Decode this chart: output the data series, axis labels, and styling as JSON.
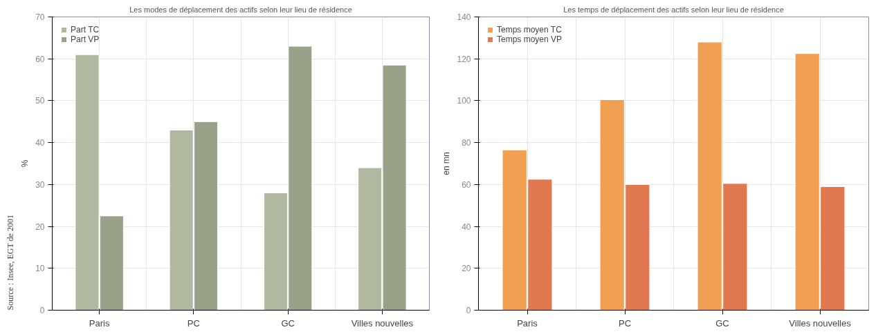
{
  "chart_data": [
    {
      "type": "bar",
      "title": "Les modes de déplacement des actifs selon leur lieu de résidence",
      "ylabel": "%",
      "categories": [
        "Paris",
        "PC",
        "GC",
        "Villes nouvelles"
      ],
      "series": [
        {
          "name": "Part TC",
          "color": "#b0b8a0",
          "values": [
            61,
            43,
            28,
            34
          ]
        },
        {
          "name": "Part VP",
          "color": "#98a288",
          "values": [
            22.5,
            45,
            63,
            58.5
          ]
        }
      ],
      "ylim": [
        0,
        70
      ],
      "yticks": [
        0,
        10,
        20,
        30,
        40,
        50,
        60,
        70
      ],
      "grid": true,
      "legend": "top left",
      "annotations": [
        "Source : Insee, EGT de 2001"
      ]
    },
    {
      "type": "bar",
      "title": "Les temps de déplacement des actifs selon leur lieu de résidence",
      "ylabel": "en mn",
      "categories": [
        "Paris",
        "PC",
        "GC",
        "Villes nouvelles"
      ],
      "series": [
        {
          "name": "Temps moyen TC",
          "color": "#f0a050",
          "values": [
            76.5,
            100.5,
            128,
            122.5
          ]
        },
        {
          "name": "Temps moyen VP",
          "color": "#e07850",
          "values": [
            62.5,
            60,
            60.5,
            59
          ]
        }
      ],
      "ylim": [
        0,
        140
      ],
      "yticks": [
        0,
        20,
        40,
        60,
        80,
        100,
        120,
        140
      ],
      "grid": true,
      "legend": "top left"
    }
  ]
}
